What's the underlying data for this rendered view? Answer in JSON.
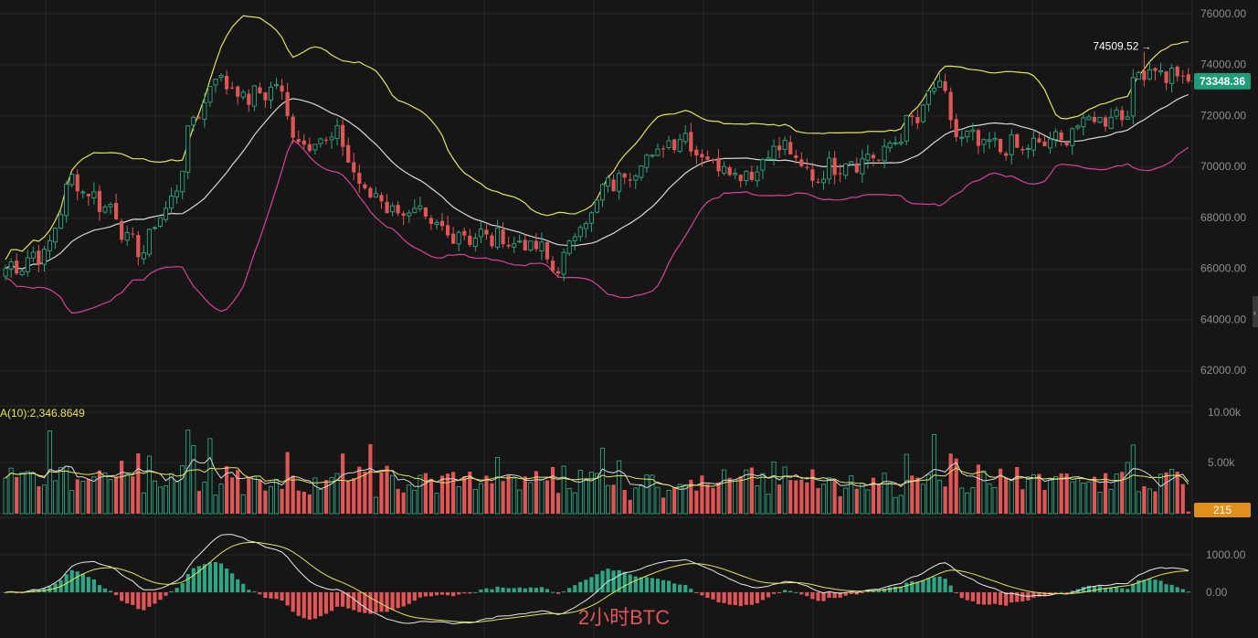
{
  "colors": {
    "background": "#161616",
    "grid": "#262626",
    "up": "#2ea684",
    "down": "#e05656",
    "upper_band": "#e6e35c",
    "middle_band": "#d8d8d8",
    "lower_band": "#d9419c",
    "macd_line": "#e9e9e9",
    "signal_line": "#e6e35c",
    "price_badge": "#1f9c7a",
    "volume_badge": "#e0901c",
    "watermark": "#e05656"
  },
  "chart_data": [
    {
      "type": "candlestick",
      "panel": "price",
      "overlay": "bollinger-bands",
      "y_ticks": [
        "76000.00",
        "74000.00",
        "72000.00",
        "70000.00",
        "68000.00",
        "66000.00",
        "64000.00",
        "62000.00"
      ],
      "ylim": [
        61600,
        76400
      ],
      "high_label": "74509.52",
      "high_value": 74509.52,
      "last_price_label": "73348.36",
      "last_price": 73348.36,
      "key_points": [
        {
          "i": 0,
          "c": 66000
        },
        {
          "i": 7,
          "c": 66600
        },
        {
          "i": 12,
          "c": 69400
        },
        {
          "i": 18,
          "c": 68500
        },
        {
          "i": 24,
          "c": 66700
        },
        {
          "i": 30,
          "c": 68600
        },
        {
          "i": 34,
          "c": 71800
        },
        {
          "i": 38,
          "c": 73500
        },
        {
          "i": 44,
          "c": 72700
        },
        {
          "i": 49,
          "c": 73100
        },
        {
          "i": 53,
          "c": 71000
        },
        {
          "i": 60,
          "c": 71100
        },
        {
          "i": 65,
          "c": 69000
        },
        {
          "i": 72,
          "c": 68200
        },
        {
          "i": 80,
          "c": 67400
        },
        {
          "i": 88,
          "c": 67200
        },
        {
          "i": 95,
          "c": 66900
        },
        {
          "i": 100,
          "c": 66000
        },
        {
          "i": 104,
          "c": 67800
        },
        {
          "i": 110,
          "c": 69400
        },
        {
          "i": 116,
          "c": 70300
        },
        {
          "i": 122,
          "c": 71200
        },
        {
          "i": 128,
          "c": 70200
        },
        {
          "i": 134,
          "c": 69700
        },
        {
          "i": 140,
          "c": 70800
        },
        {
          "i": 146,
          "c": 69600
        },
        {
          "i": 152,
          "c": 70200
        },
        {
          "i": 158,
          "c": 70400
        },
        {
          "i": 164,
          "c": 71700
        },
        {
          "i": 169,
          "c": 73200
        },
        {
          "i": 172,
          "c": 71200
        },
        {
          "i": 178,
          "c": 70800
        },
        {
          "i": 184,
          "c": 70700
        },
        {
          "i": 190,
          "c": 71000
        },
        {
          "i": 196,
          "c": 71800
        },
        {
          "i": 202,
          "c": 72100
        },
        {
          "i": 206,
          "c": 73900
        },
        {
          "i": 211,
          "c": 73600
        },
        {
          "i": 214,
          "c": 73348
        }
      ]
    },
    {
      "type": "bar",
      "panel": "volume",
      "label": "A(10):2,346.8649",
      "y_ticks": [
        "10.00k",
        "5.00k"
      ],
      "ylim": [
        0,
        10000
      ],
      "last_volume_label": "215",
      "last_volume": 215
    },
    {
      "type": "bar",
      "panel": "macd",
      "y_ticks": [
        "1000.00",
        "0.00"
      ],
      "ylim": [
        -500,
        1200
      ]
    }
  ],
  "watermark": "2小时BTC"
}
